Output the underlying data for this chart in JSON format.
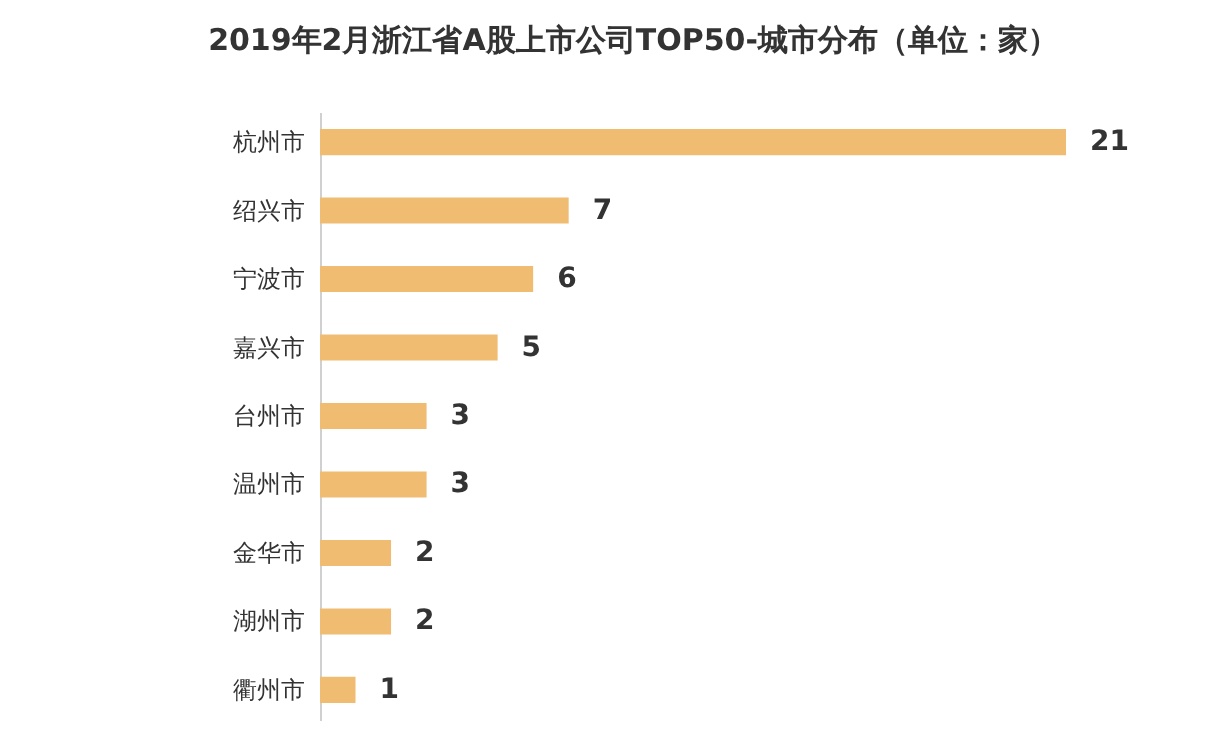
{
  "chart_data": {
    "type": "bar",
    "orientation": "horizontal",
    "title": "2019年2月浙江省A股上市公司TOP50-城市分布（单位：家）",
    "categories": [
      "杭州市",
      "绍兴市",
      "宁波市",
      "嘉兴市",
      "台州市",
      "温州市",
      "金华市",
      "湖州市",
      "衢州市"
    ],
    "values": [
      21,
      7,
      6,
      5,
      3,
      3,
      2,
      2,
      1
    ],
    "color": "#f0bc72",
    "data_labels": true
  }
}
